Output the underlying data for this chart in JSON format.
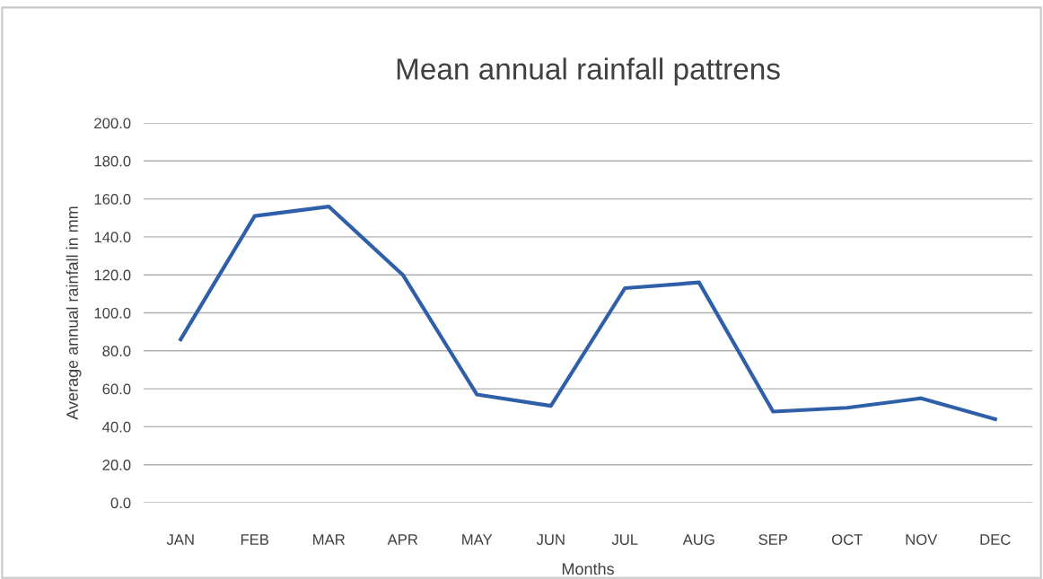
{
  "chart_data": {
    "type": "line",
    "title": "Mean annual rainfall pattrens",
    "xlabel": "Months",
    "ylabel": "Average annual rainfall in mm",
    "categories": [
      "JAN",
      "FEB",
      "MAR",
      "APR",
      "MAY",
      "JUN",
      "JUL",
      "AUG",
      "SEP",
      "OCT",
      "NOV",
      "DEC"
    ],
    "series": [
      {
        "color": "#2f5fa8",
        "values": [
          86,
          151,
          156,
          120,
          57,
          51,
          113,
          116,
          48,
          50,
          55,
          44
        ]
      }
    ],
    "ylim": [
      0,
      200
    ],
    "yticks": [
      {
        "value": 0,
        "label": "0.0"
      },
      {
        "value": 20,
        "label": "20.0"
      },
      {
        "value": 40,
        "label": "40.0"
      },
      {
        "value": 60,
        "label": "60.0"
      },
      {
        "value": 80,
        "label": "80.0"
      },
      {
        "value": 100,
        "label": "100.0"
      },
      {
        "value": 120,
        "label": "120.0"
      },
      {
        "value": 140,
        "label": "140.0"
      },
      {
        "value": 160,
        "label": "160.0"
      },
      {
        "value": 180,
        "label": "180.0"
      },
      {
        "value": 200,
        "label": "200.0"
      }
    ],
    "grid": "y",
    "legend": false,
    "marker": "none",
    "line_style": "solid"
  }
}
